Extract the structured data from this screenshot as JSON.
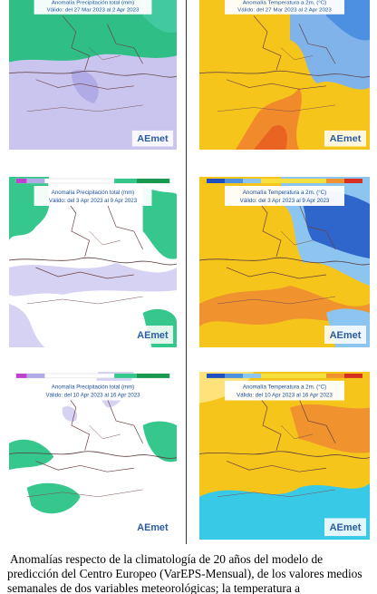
{
  "panels": [
    {
      "title": "Anomalía Precipitación total (mm)",
      "valid": "Válido: del 27 Mar 2023 al 2 Apr 2023",
      "logo": "AEmet"
    },
    {
      "title": "Anomalía Temperatura a 2m. (°C)",
      "valid": "Válido: del 27 Mar 2023 al 2 Apr 2023",
      "logo": "AEmet"
    },
    {
      "title": "Anomalía Precipitación total (mm)",
      "valid": "Válido: del 3 Apr 2023 al 9 Apr 2023",
      "logo": "AEmet"
    },
    {
      "title": "Anomalía Temperatura a 2m. (°C)",
      "valid": "Válido: del 3 Apr 2023 al 9 Apr 2023",
      "logo": "AEmet"
    },
    {
      "title": "Anomalía Precipitación total (mm)",
      "valid": "Válido: del 10 Apr 2023 al 16 Apr 2023",
      "logo": "AEmet"
    },
    {
      "title": "Anomalía Temperatura a 2m. (°C)",
      "valid": "Válido: del 10 Apr 2023 al 16 Apr 2023",
      "logo": "AEmet"
    }
  ],
  "caption": "Anomalías respecto de la climatología de 20 años del modelo de predicción del Centro Europeo (VarEPS-Mensual), de los valores medios semanales de dos variables meteorológicas; la temperatura a"
}
